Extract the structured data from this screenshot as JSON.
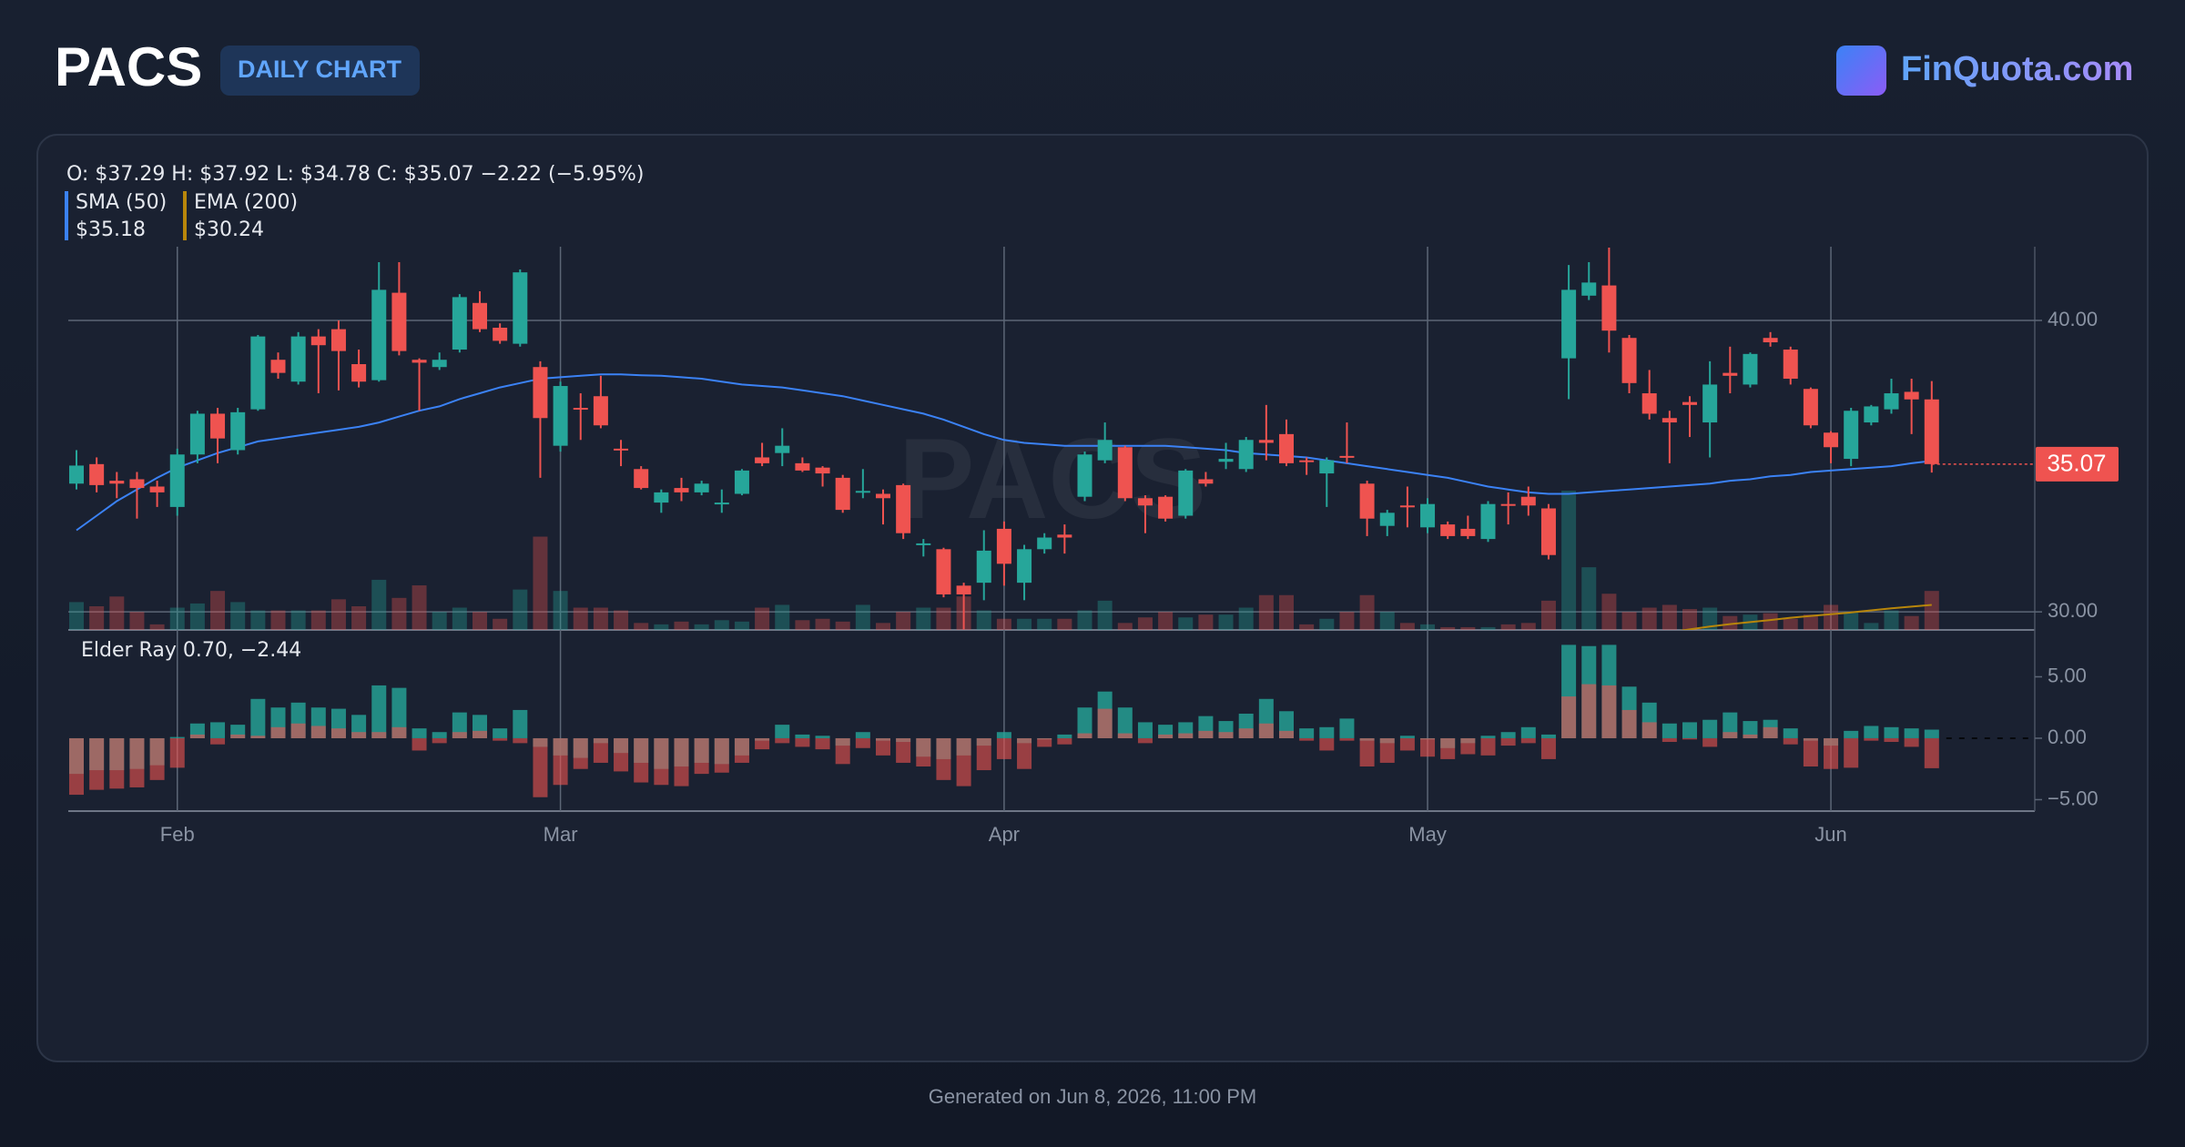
{
  "header": {
    "title": "PACS",
    "badge": "DAILY CHART",
    "brand": "FinQuota.com"
  },
  "footer": "Generated on Jun 8, 2026, 11:00 PM",
  "chart_data": {
    "type": "candlestick",
    "watermark": "PACS",
    "ohlc_text": "O: $37.29 H: $37.92 L: $34.78 C: $35.07 −2.22 (−5.95%)",
    "up_color": "#26a69a",
    "down_color": "#ef5350",
    "categories": [
      null,
      null,
      null,
      null,
      null,
      "Feb",
      null,
      null,
      null,
      null,
      null,
      null,
      null,
      null,
      null,
      null,
      null,
      null,
      null,
      null,
      null,
      null,
      null,
      null,
      "Mar",
      null,
      null,
      null,
      null,
      null,
      null,
      null,
      null,
      null,
      null,
      null,
      null,
      null,
      null,
      null,
      null,
      null,
      null,
      null,
      null,
      null,
      "Apr",
      null,
      null,
      null,
      null,
      null,
      null,
      null,
      null,
      null,
      null,
      null,
      null,
      null,
      null,
      null,
      null,
      null,
      null,
      null,
      null,
      "May",
      null,
      null,
      null,
      null,
      null,
      null,
      null,
      null,
      null,
      null,
      null,
      null,
      null,
      null,
      null,
      null,
      null,
      null,
      null,
      "Jun",
      null,
      null,
      null,
      null,
      null
    ],
    "ohlc": [
      [
        34.4,
        35.55,
        34.2,
        35.02
      ],
      [
        35.07,
        35.3,
        34.1,
        34.35
      ],
      [
        34.5,
        34.8,
        33.9,
        34.4
      ],
      [
        34.55,
        34.8,
        33.2,
        34.25
      ],
      [
        34.3,
        34.5,
        33.6,
        34.1
      ],
      [
        33.6,
        35.6,
        33.3,
        35.4
      ],
      [
        35.4,
        36.9,
        35.1,
        36.8
      ],
      [
        36.8,
        37.0,
        35.1,
        35.95
      ],
      [
        35.55,
        37.0,
        35.4,
        36.85
      ],
      [
        36.95,
        39.5,
        36.9,
        39.45
      ],
      [
        38.65,
        38.9,
        38.0,
        38.2
      ],
      [
        37.9,
        39.6,
        37.8,
        39.45
      ],
      [
        39.45,
        39.7,
        37.5,
        39.15
      ],
      [
        39.7,
        40.0,
        37.6,
        38.95
      ],
      [
        38.5,
        39.0,
        37.7,
        37.9
      ],
      [
        37.95,
        42.0,
        37.9,
        41.05
      ],
      [
        40.95,
        42.0,
        38.8,
        38.95
      ],
      [
        38.65,
        38.7,
        36.9,
        38.55
      ],
      [
        38.4,
        38.9,
        38.3,
        38.65
      ],
      [
        39.0,
        40.9,
        38.9,
        40.8
      ],
      [
        40.6,
        41.0,
        39.6,
        39.7
      ],
      [
        39.75,
        39.9,
        39.2,
        39.3
      ],
      [
        39.2,
        41.75,
        39.1,
        41.65
      ],
      [
        38.4,
        38.6,
        34.6,
        36.65
      ],
      [
        35.7,
        37.9,
        35.5,
        37.75
      ],
      [
        37.0,
        37.5,
        35.9,
        36.95
      ],
      [
        37.4,
        38.1,
        36.3,
        36.4
      ],
      [
        35.6,
        35.9,
        35.0,
        35.55
      ],
      [
        34.9,
        35.0,
        34.2,
        34.25
      ],
      [
        33.75,
        34.2,
        33.4,
        34.1
      ],
      [
        34.25,
        34.6,
        33.8,
        34.1
      ],
      [
        34.1,
        34.5,
        34.0,
        34.4
      ],
      [
        33.7,
        34.2,
        33.4,
        33.75
      ],
      [
        34.05,
        34.9,
        34.0,
        34.85
      ],
      [
        35.3,
        35.8,
        35.0,
        35.1
      ],
      [
        35.45,
        36.3,
        35.0,
        35.7
      ],
      [
        35.1,
        35.3,
        34.8,
        34.85
      ],
      [
        34.95,
        35.0,
        34.3,
        34.75
      ],
      [
        34.6,
        34.7,
        33.4,
        33.5
      ],
      [
        34.1,
        34.9,
        33.9,
        34.15
      ],
      [
        34.05,
        34.2,
        33.0,
        33.9
      ],
      [
        34.35,
        34.4,
        32.5,
        32.7
      ],
      [
        32.3,
        32.5,
        31.9,
        32.35
      ],
      [
        32.15,
        32.2,
        30.5,
        30.6
      ],
      [
        30.9,
        31.0,
        29.4,
        30.6
      ],
      [
        31.0,
        32.8,
        30.4,
        32.1
      ],
      [
        32.85,
        33.1,
        30.9,
        31.65
      ],
      [
        31.0,
        32.3,
        30.4,
        32.15
      ],
      [
        32.15,
        32.7,
        32.0,
        32.55
      ],
      [
        32.65,
        33.0,
        32.0,
        32.55
      ],
      [
        33.95,
        35.5,
        33.8,
        35.4
      ],
      [
        35.2,
        36.5,
        35.1,
        35.9
      ],
      [
        35.65,
        35.7,
        33.8,
        33.9
      ],
      [
        33.9,
        34.0,
        32.7,
        33.65
      ],
      [
        33.95,
        34.0,
        33.1,
        33.2
      ],
      [
        33.3,
        34.9,
        33.2,
        34.85
      ],
      [
        34.55,
        34.8,
        34.3,
        34.4
      ],
      [
        35.15,
        35.8,
        34.9,
        35.25
      ],
      [
        34.9,
        36.0,
        34.8,
        35.9
      ],
      [
        35.9,
        37.1,
        35.2,
        35.8
      ],
      [
        36.1,
        36.6,
        35.0,
        35.1
      ],
      [
        35.2,
        35.3,
        34.7,
        35.15
      ],
      [
        34.75,
        35.3,
        33.6,
        35.2
      ],
      [
        35.35,
        36.5,
        35.1,
        35.3
      ],
      [
        34.4,
        34.5,
        32.6,
        33.2
      ],
      [
        32.95,
        33.5,
        32.6,
        33.4
      ],
      [
        33.65,
        34.3,
        32.9,
        33.6
      ],
      [
        32.9,
        33.9,
        32.7,
        33.7
      ],
      [
        33.0,
        33.1,
        32.5,
        32.6
      ],
      [
        32.85,
        33.3,
        32.5,
        32.6
      ],
      [
        32.5,
        33.8,
        32.4,
        33.7
      ],
      [
        33.7,
        34.1,
        33.0,
        33.65
      ],
      [
        33.95,
        34.3,
        33.3,
        33.65
      ],
      [
        33.55,
        33.7,
        31.8,
        31.95
      ],
      [
        38.7,
        41.9,
        37.3,
        41.05
      ],
      [
        40.85,
        42.0,
        40.7,
        41.3
      ],
      [
        41.2,
        42.5,
        38.9,
        39.65
      ],
      [
        39.4,
        39.5,
        37.5,
        37.85
      ],
      [
        37.5,
        38.3,
        36.6,
        36.8
      ],
      [
        36.65,
        36.9,
        35.1,
        36.5
      ],
      [
        37.2,
        37.4,
        36.0,
        37.1
      ],
      [
        36.5,
        38.6,
        35.3,
        37.8
      ],
      [
        38.2,
        39.1,
        37.5,
        38.1
      ],
      [
        37.8,
        38.9,
        37.7,
        38.85
      ],
      [
        39.4,
        39.6,
        39.1,
        39.25
      ],
      [
        39.0,
        39.1,
        37.8,
        38.0
      ],
      [
        37.65,
        37.7,
        36.3,
        36.4
      ],
      [
        36.15,
        36.2,
        35.1,
        35.65
      ],
      [
        35.25,
        37.0,
        35.0,
        36.9
      ],
      [
        36.5,
        37.1,
        36.4,
        37.05
      ],
      [
        36.95,
        38.0,
        36.8,
        37.5
      ],
      [
        37.55,
        38.0,
        36.1,
        37.29
      ],
      [
        37.29,
        37.92,
        34.78,
        35.07
      ]
    ],
    "volume": [
      200000,
      170000,
      240000,
      130000,
      40000,
      160000,
      190000,
      280000,
      200000,
      140000,
      140000,
      140000,
      140000,
      220000,
      170000,
      360000,
      230000,
      320000,
      130000,
      160000,
      130000,
      80000,
      290000,
      670000,
      280000,
      160000,
      160000,
      140000,
      50000,
      40000,
      60000,
      40000,
      70000,
      60000,
      160000,
      180000,
      70000,
      80000,
      60000,
      180000,
      50000,
      130000,
      160000,
      160000,
      240000,
      140000,
      80000,
      80000,
      80000,
      80000,
      140000,
      210000,
      50000,
      90000,
      130000,
      90000,
      110000,
      110000,
      160000,
      250000,
      250000,
      40000,
      80000,
      130000,
      250000,
      130000,
      50000,
      40000,
      20000,
      20000,
      20000,
      40000,
      50000,
      210000,
      1000000,
      450000,
      260000,
      130000,
      160000,
      180000,
      150000,
      160000,
      100000,
      110000,
      120000,
      80000,
      110000,
      180000,
      130000,
      50000,
      140000,
      100000,
      280000
    ],
    "overlays": [
      {
        "name": "SMA (50)",
        "value_label": "$35.18",
        "color": "#3b82f6",
        "values": [
          32.8,
          33.3,
          33.8,
          34.2,
          34.6,
          34.95,
          35.2,
          35.45,
          35.65,
          35.85,
          35.95,
          36.05,
          36.15,
          36.25,
          36.35,
          36.5,
          36.7,
          36.9,
          37.05,
          37.3,
          37.5,
          37.7,
          37.85,
          38.0,
          38.05,
          38.1,
          38.15,
          38.15,
          38.12,
          38.1,
          38.05,
          38.0,
          37.9,
          37.8,
          37.75,
          37.7,
          37.6,
          37.5,
          37.4,
          37.25,
          37.1,
          36.95,
          36.8,
          36.6,
          36.35,
          36.1,
          35.9,
          35.8,
          35.75,
          35.7,
          35.7,
          35.7,
          35.7,
          35.7,
          35.7,
          35.65,
          35.6,
          35.55,
          35.45,
          35.4,
          35.35,
          35.3,
          35.2,
          35.1,
          35.0,
          34.9,
          34.8,
          34.7,
          34.6,
          34.45,
          34.3,
          34.2,
          34.1,
          34.05,
          34.05,
          34.1,
          34.15,
          34.2,
          34.25,
          34.3,
          34.35,
          34.4,
          34.5,
          34.55,
          34.65,
          34.7,
          34.8,
          34.85,
          34.9,
          34.95,
          35.0,
          35.1,
          35.18
        ]
      },
      {
        "name": "EMA (200)",
        "value_label": "$30.24",
        "color": "#b8860b",
        "values": [
          null,
          null,
          null,
          null,
          null,
          null,
          null,
          null,
          null,
          null,
          null,
          null,
          null,
          null,
          null,
          null,
          null,
          null,
          null,
          null,
          null,
          null,
          null,
          null,
          null,
          null,
          null,
          null,
          null,
          null,
          null,
          null,
          null,
          null,
          null,
          null,
          null,
          null,
          null,
          null,
          null,
          null,
          null,
          null,
          null,
          null,
          null,
          null,
          null,
          null,
          null,
          null,
          null,
          null,
          null,
          null,
          null,
          null,
          null,
          null,
          null,
          null,
          null,
          null,
          null,
          null,
          null,
          null,
          null,
          null,
          null,
          null,
          null,
          null,
          null,
          null,
          null,
          null,
          null,
          29.3,
          29.4,
          29.5,
          29.58,
          29.65,
          29.72,
          29.8,
          29.86,
          29.92,
          29.98,
          30.05,
          30.12,
          30.18,
          30.24
        ]
      }
    ],
    "ylim": [
      29.38,
      42.53
    ],
    "yticks": [
      {
        "value": 30,
        "label": "30.00"
      },
      {
        "value": 40,
        "label": "40.00"
      }
    ],
    "elder_ray": {
      "label": "Elder Ray 0.70, −2.44",
      "bull_color": "#26a69a",
      "bear_color": "#ef5350",
      "bull": [
        -2.9,
        -2.6,
        -2.6,
        -2.5,
        -2.2,
        0.1,
        1.2,
        1.3,
        1.1,
        3.2,
        2.5,
        2.9,
        2.5,
        2.4,
        1.9,
        4.3,
        4.1,
        0.8,
        0.5,
        2.1,
        1.9,
        0.8,
        2.3,
        -0.7,
        -1.4,
        -1.6,
        -0.4,
        -1.2,
        -2.0,
        -2.5,
        -2.3,
        -2.0,
        -2.1,
        -1.4,
        -0.2,
        1.1,
        0.3,
        0.2,
        -0.6,
        0.5,
        -0.2,
        -0.3,
        -1.5,
        -1.7,
        -1.4,
        -0.6,
        0.5,
        -0.4,
        -0.1,
        0.3,
        2.5,
        3.8,
        2.5,
        1.3,
        1.1,
        1.3,
        1.8,
        1.4,
        2.0,
        3.2,
        2.2,
        0.8,
        0.9,
        1.6,
        -0.2,
        -0.4,
        0.2,
        -0.1,
        -0.8,
        -0.4,
        0.2,
        0.5,
        0.9,
        0.3,
        7.6,
        7.5,
        7.6,
        4.2,
        2.9,
        1.2,
        1.3,
        1.5,
        2.1,
        1.4,
        1.5,
        0.8,
        -0.2,
        -0.6,
        0.6,
        1.0,
        0.9,
        0.8,
        0.7
      ],
      "bear": [
        -4.6,
        -4.2,
        -4.1,
        -4.0,
        -3.4,
        -2.4,
        0.3,
        -0.5,
        0.3,
        0.2,
        0.9,
        1.2,
        1.0,
        0.8,
        0.5,
        0.5,
        0.9,
        -1.0,
        -0.4,
        0.5,
        0.6,
        -0.2,
        -0.4,
        -4.8,
        -3.8,
        -2.5,
        -2.0,
        -2.7,
        -3.6,
        -3.8,
        -3.9,
        -2.9,
        -2.8,
        -2.0,
        -0.9,
        -0.4,
        -0.7,
        -0.9,
        -2.1,
        -0.8,
        -1.4,
        -2.0,
        -2.3,
        -3.4,
        -3.9,
        -2.6,
        -1.7,
        -2.5,
        -0.7,
        -0.5,
        0.4,
        2.4,
        0.4,
        -0.4,
        0.3,
        0.4,
        0.6,
        0.5,
        0.8,
        1.2,
        0.6,
        -0.2,
        -1.0,
        -0.2,
        -2.3,
        -2.0,
        -1.0,
        -1.5,
        -1.7,
        -1.3,
        -1.4,
        -0.6,
        -0.4,
        -1.7,
        3.4,
        4.4,
        4.3,
        2.3,
        1.3,
        -0.3,
        -0.1,
        -0.7,
        0.5,
        0.3,
        0.9,
        -0.5,
        -2.3,
        -2.5,
        -2.4,
        -0.2,
        -0.3,
        -0.7,
        -2.44
      ],
      "ylim": [
        -5.93,
        8.74
      ],
      "yticks": [
        {
          "value": 5,
          "label": "5.00"
        },
        {
          "value": 0,
          "label": "0.00"
        },
        {
          "value": -5,
          "label": "−5.00"
        }
      ]
    }
  }
}
